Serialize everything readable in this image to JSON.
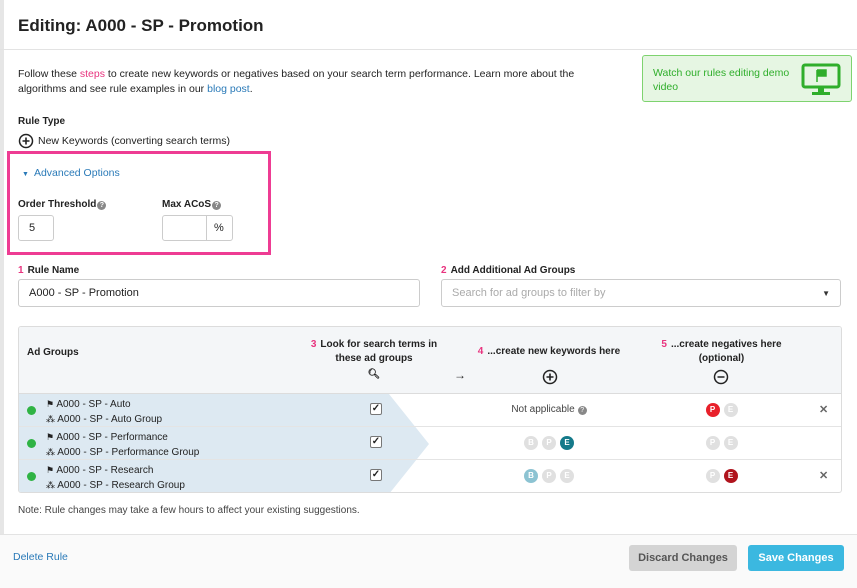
{
  "header": {
    "title": "Editing: A000 - SP - Promotion"
  },
  "intro": {
    "t1": "Follow these ",
    "steps": "steps",
    "t2": " to create new keywords or negatives based on your search term performance. Learn more about the algorithms and see rule examples in our ",
    "blog": "blog post",
    "t3": "."
  },
  "demo": {
    "label": "Watch our rules editing demo video"
  },
  "rule_type": {
    "label": "Rule Type",
    "value": "New Keywords (converting search terms)"
  },
  "advanced": {
    "label": "Advanced Options",
    "order_threshold_label": "Order Threshold",
    "order_threshold_value": "5",
    "max_acos_label": "Max ACoS",
    "max_acos_value": "",
    "percent": "%"
  },
  "rule_name": {
    "num": "1",
    "label": "Rule Name",
    "value": "A000 - SP - Promotion"
  },
  "add_groups": {
    "num": "2",
    "label": "Add Additional Ad Groups",
    "placeholder": "Search for ad groups to filter by"
  },
  "table": {
    "col_ad_groups": "Ad Groups",
    "col3_num": "3",
    "col3": "Look for search terms in these ad groups",
    "col4_num": "4",
    "col4": "...create new keywords here",
    "col5_num": "5",
    "col5": "...create negatives here (optional)",
    "rows": [
      {
        "campaign": "A000 - SP - Auto",
        "group": "A000 - SP - Auto Group",
        "checked": true,
        "keywords_text": "Not applicable",
        "keywords": [],
        "negatives": [
          {
            "l": "P",
            "c": "#e8202a"
          },
          {
            "l": "E",
            "c": "#e0e0e0"
          }
        ],
        "removable": true
      },
      {
        "campaign": "A000 - SP - Performance",
        "group": "A000 - SP - Performance Group",
        "checked": true,
        "keywords": [
          {
            "l": "B",
            "c": "#e0e0e0"
          },
          {
            "l": "P",
            "c": "#e0e0e0"
          },
          {
            "l": "E",
            "c": "#157a8a"
          }
        ],
        "negatives": [
          {
            "l": "P",
            "c": "#e0e0e0"
          },
          {
            "l": "E",
            "c": "#e0e0e0"
          }
        ],
        "removable": false
      },
      {
        "campaign": "A000 - SP - Research",
        "group": "A000 - SP - Research Group",
        "checked": true,
        "keywords": [
          {
            "l": "B",
            "c": "#8cc3d2"
          },
          {
            "l": "P",
            "c": "#e0e0e0"
          },
          {
            "l": "E",
            "c": "#e0e0e0"
          }
        ],
        "negatives": [
          {
            "l": "P",
            "c": "#e0e0e0"
          },
          {
            "l": "E",
            "c": "#b0141d"
          }
        ],
        "removable": true
      }
    ]
  },
  "note": "Note: Rule changes may take a few hours to affect your existing suggestions.",
  "footer": {
    "delete": "Delete Rule",
    "discard": "Discard Changes",
    "save": "Save Changes"
  }
}
